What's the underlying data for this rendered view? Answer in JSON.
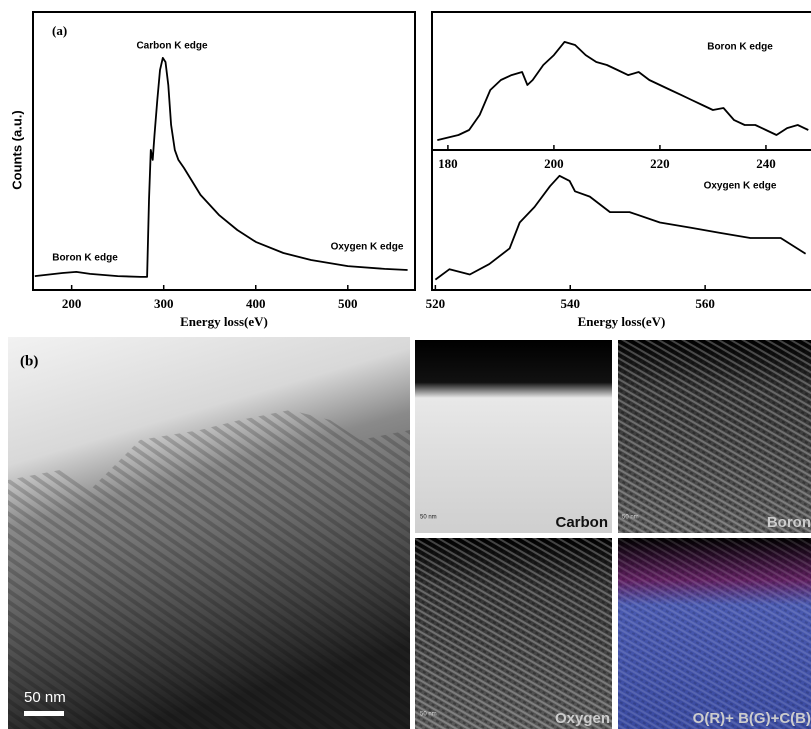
{
  "chart_data": [
    {
      "type": "line",
      "annotations": [
        "(a)",
        "Carbon K edge",
        "Boron K edge",
        "Oxygen K edge"
      ],
      "x_label": "Energy loss(eV)",
      "y_label": "Counts (a.u.)",
      "x": [
        160,
        190,
        205,
        220,
        250,
        275,
        282,
        284,
        286,
        288,
        290,
        293,
        296,
        299,
        302,
        305,
        308,
        312,
        316,
        322,
        330,
        340,
        360,
        380,
        400,
        430,
        460,
        500,
        540,
        565
      ],
      "series": [
        {
          "color": "#000000",
          "values": [
            5.0,
            6.1,
            6.5,
            5.8,
            5.0,
            4.7,
            4.7,
            32.4,
            50.4,
            46.8,
            55.8,
            68.3,
            79.1,
            83.5,
            82.0,
            73.7,
            59.4,
            50.4,
            46.8,
            43.9,
            39.6,
            34.2,
            27.0,
            21.6,
            17.3,
            13.3,
            10.8,
            8.6,
            7.6,
            7.2
          ]
        }
      ],
      "xlim": [
        158,
        573
      ],
      "ylim": [
        0,
        100
      ],
      "xticks": [
        200,
        300,
        400,
        500
      ]
    },
    {
      "type": "line",
      "annotations": [
        "Boron K edge"
      ],
      "x": [
        178,
        182,
        184,
        186,
        188,
        190,
        192,
        194,
        195,
        196,
        198,
        200,
        202,
        204,
        206,
        208,
        210,
        212,
        214,
        216,
        218,
        220,
        222,
        224,
        226,
        228,
        230,
        232,
        234,
        236,
        238,
        240,
        242,
        244,
        246,
        248
      ],
      "series": [
        {
          "color": "#000000",
          "values": [
            7.2,
            10.9,
            14.5,
            25.4,
            43.5,
            50.7,
            54.3,
            56.5,
            47.1,
            50.7,
            61.6,
            68.8,
            78.3,
            76.1,
            68.8,
            63.8,
            61.6,
            58.0,
            54.3,
            56.5,
            50.7,
            47.1,
            43.5,
            39.9,
            36.2,
            32.6,
            29.0,
            30.4,
            21.7,
            18.1,
            18.1,
            14.5,
            10.9,
            15.9,
            18.1,
            14.5
          ]
        }
      ],
      "xlim": [
        177,
        248.5
      ],
      "ylim": [
        0,
        100
      ],
      "xticks": [
        180,
        200,
        220,
        240
      ]
    },
    {
      "type": "line",
      "annotations": [
        "Oxygen K edge"
      ],
      "x_label": "Energy loss(eV)",
      "x": [
        520,
        522.1,
        525.1,
        528.0,
        531.0,
        532.5,
        534.7,
        537.0,
        538.4,
        539.9,
        540.7,
        542.9,
        545.9,
        548.8,
        553.3,
        557.8,
        562.2,
        566.7,
        571.2,
        574.9
      ],
      "series": [
        {
          "color": "#000000",
          "values": [
            7.7,
            15.4,
            11.5,
            19.2,
            30.8,
            50.0,
            61.5,
            76.9,
            84.6,
            80.8,
            73.1,
            69.2,
            57.7,
            57.7,
            50.0,
            46.2,
            42.3,
            38.5,
            38.5,
            26.9
          ]
        }
      ],
      "xlim": [
        519.5,
        575.7
      ],
      "ylim": [
        0,
        100
      ],
      "xticks": [
        520,
        540,
        560
      ]
    }
  ],
  "panel_b": {
    "label": "(b)",
    "scale_bar": "50 nm",
    "maps": [
      {
        "label": "Carbon",
        "scale_bar": "50 nm"
      },
      {
        "label": "Boron",
        "scale_bar": "50 nm"
      },
      {
        "label": "Oxygen",
        "scale_bar": "50 nm"
      },
      {
        "label": "O(R)+ B(G)+C(B)"
      }
    ]
  }
}
